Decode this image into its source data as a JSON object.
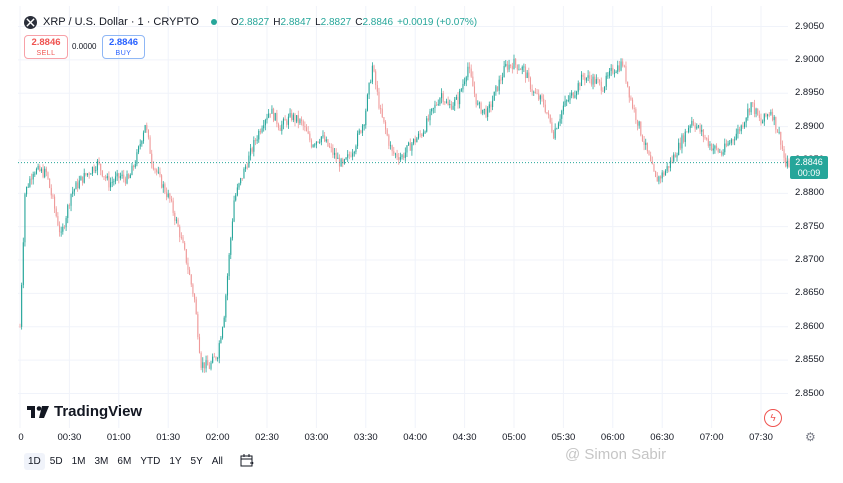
{
  "header": {
    "symbol_title": "XRP / U.S. Dollar · 1 · CRYPTO",
    "ohlc": [
      {
        "k": "O",
        "v": "2.8827"
      },
      {
        "k": "H",
        "v": "2.8847"
      },
      {
        "k": "L",
        "v": "2.8827"
      },
      {
        "k": "C",
        "v": "2.8846"
      }
    ],
    "change": "+0.0019 (+0.07%)"
  },
  "trade": {
    "sell_price": "2.8846",
    "sell_label": "SELL",
    "spread": "0.0000",
    "buy_price": "2.8846",
    "buy_label": "BUY"
  },
  "price_tag": {
    "price": "2.8846",
    "countdown": "00:09"
  },
  "logo_text": "TradingView",
  "ranges": [
    "1D",
    "5D",
    "1M",
    "3M",
    "6M",
    "YTD",
    "1Y",
    "5Y",
    "All"
  ],
  "active_range": "1D",
  "watermark": "@ Simon Sabir",
  "colors": {
    "up": "#26a69a",
    "down": "#ef9a9a",
    "last_price": "#26a69a"
  },
  "chart_data": {
    "type": "candlestick",
    "y_ticks": [
      "2.9050",
      "2.9000",
      "2.8950",
      "2.8900",
      "2.8850",
      "2.8800",
      "2.8750",
      "2.8700",
      "2.8650",
      "2.8600",
      "2.8550",
      "2.8500"
    ],
    "x_ticks": [
      "0",
      "00:30",
      "01:00",
      "01:30",
      "02:00",
      "02:30",
      "03:00",
      "03:30",
      "04:00",
      "04:30",
      "05:00",
      "05:30",
      "06:00",
      "06:30",
      "07:00",
      "07:30"
    ],
    "ylim": [
      2.8485,
      2.9065
    ],
    "x_range_minutes": [
      0,
      480
    ],
    "last_price": 2.8846,
    "anchors": [
      [
        0,
        2.86
      ],
      [
        3,
        2.88
      ],
      [
        8,
        2.8835
      ],
      [
        16,
        2.883
      ],
      [
        25,
        2.8735
      ],
      [
        31,
        2.88
      ],
      [
        37,
        2.882
      ],
      [
        47,
        2.8845
      ],
      [
        54,
        2.8815
      ],
      [
        61,
        2.8825
      ],
      [
        66,
        2.882
      ],
      [
        71,
        2.8855
      ],
      [
        76,
        2.8905
      ],
      [
        80,
        2.885
      ],
      [
        85,
        2.882
      ],
      [
        91,
        2.879
      ],
      [
        97,
        2.874
      ],
      [
        101,
        2.87
      ],
      [
        106,
        2.864
      ],
      [
        110,
        2.8545
      ],
      [
        115,
        2.854
      ],
      [
        120,
        2.856
      ],
      [
        124,
        2.862
      ],
      [
        130,
        2.879
      ],
      [
        137,
        2.884
      ],
      [
        143,
        2.888
      ],
      [
        148,
        2.891
      ],
      [
        152,
        2.8925
      ],
      [
        158,
        2.89
      ],
      [
        165,
        2.8915
      ],
      [
        171,
        2.8905
      ],
      [
        177,
        2.8875
      ],
      [
        183,
        2.8885
      ],
      [
        190,
        2.886
      ],
      [
        196,
        2.884
      ],
      [
        203,
        2.887
      ],
      [
        209,
        2.891
      ],
      [
        214,
        2.899
      ],
      [
        219,
        2.892
      ],
      [
        226,
        2.886
      ],
      [
        232,
        2.8855
      ],
      [
        238,
        2.8875
      ],
      [
        244,
        2.889
      ],
      [
        250,
        2.892
      ],
      [
        256,
        2.895
      ],
      [
        260,
        2.893
      ],
      [
        266,
        2.894
      ],
      [
        272,
        2.899
      ],
      [
        278,
        2.893
      ],
      [
        284,
        2.892
      ],
      [
        290,
        2.896
      ],
      [
        295,
        2.899
      ],
      [
        300,
        2.8995
      ],
      [
        306,
        2.8985
      ],
      [
        312,
        2.895
      ],
      [
        318,
        2.8935
      ],
      [
        324,
        2.889
      ],
      [
        330,
        2.893
      ],
      [
        336,
        2.895
      ],
      [
        342,
        2.8975
      ],
      [
        348,
        2.897
      ],
      [
        354,
        2.896
      ],
      [
        360,
        2.8985
      ],
      [
        366,
        2.8995
      ],
      [
        371,
        2.894
      ],
      [
        376,
        2.89
      ],
      [
        381,
        2.886
      ],
      [
        386,
        2.882
      ],
      [
        391,
        2.883
      ],
      [
        396,
        2.885
      ],
      [
        402,
        2.888
      ],
      [
        408,
        2.891
      ],
      [
        414,
        2.889
      ],
      [
        420,
        2.887
      ],
      [
        426,
        2.886
      ],
      [
        432,
        2.888
      ],
      [
        438,
        2.89
      ],
      [
        444,
        2.8935
      ],
      [
        450,
        2.8905
      ],
      [
        456,
        2.8925
      ],
      [
        462,
        2.888
      ],
      [
        465,
        2.884
      ],
      [
        468,
        2.8846
      ]
    ]
  }
}
